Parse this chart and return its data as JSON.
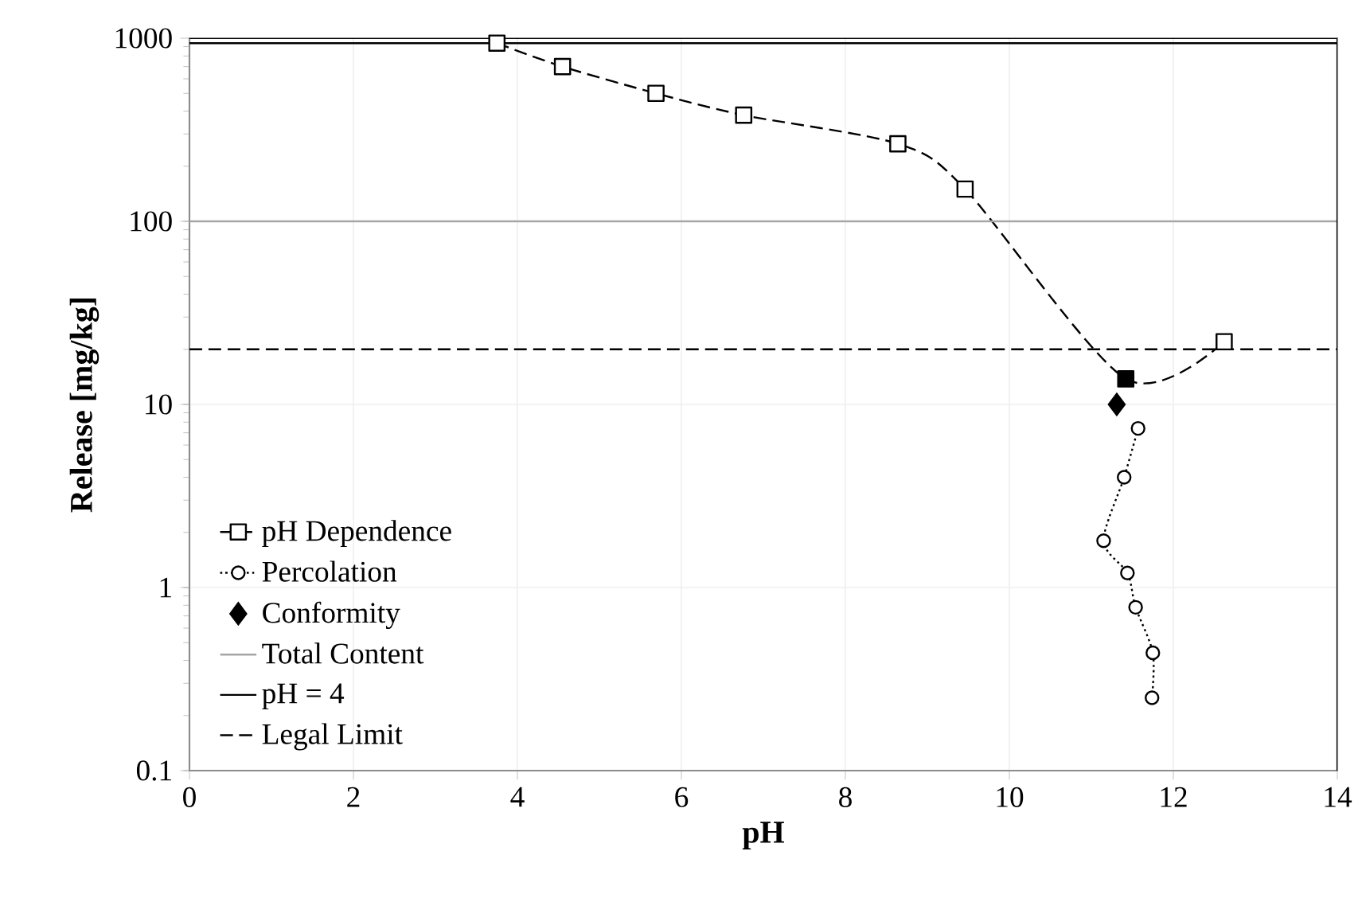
{
  "chart_data": {
    "type": "line",
    "xlabel": "pH",
    "ylabel": "Release [mg/kg]",
    "xlim": [
      0,
      14
    ],
    "xticks": [
      0,
      2,
      4,
      6,
      8,
      10,
      12,
      14
    ],
    "ylim": [
      0.1,
      1000
    ],
    "yticks": [
      0.1,
      1,
      10,
      100,
      1000
    ],
    "log": true,
    "grid": true,
    "legend": "bottom left",
    "series": [
      {
        "name": "pH Dependence",
        "color": "#000000",
        "marker": "square",
        "line_style": "dashed",
        "x": [
          3.75,
          4.55,
          5.69,
          6.76,
          8.64,
          9.46,
          11.42,
          12.62
        ],
        "values": [
          940,
          700,
          500,
          380,
          265,
          150,
          13.8,
          22
        ],
        "colors": [
          "#ffffff",
          "#ffffff",
          "#ffffff",
          "#ffffff",
          "#ffffff",
          "#ffffff",
          "#000000",
          "#ffffff"
        ]
      },
      {
        "name": "Percolation",
        "color": "#000000",
        "marker": "circle",
        "line_style": "dotted",
        "x": [
          11.57,
          11.4,
          11.15,
          11.44,
          11.54,
          11.75,
          11.74
        ],
        "values": [
          7.4,
          4.0,
          1.8,
          1.2,
          0.78,
          0.44,
          0.25
        ]
      },
      {
        "name": "Conformity",
        "type": "scatter",
        "color": "#000000",
        "marker": "diamond",
        "x": [
          11.31
        ],
        "values": [
          10
        ]
      },
      {
        "name": "Total Content",
        "color": "#a6a6a6",
        "marker": "none",
        "line_style": "solid",
        "x": [
          0,
          14
        ],
        "values": [
          100,
          100
        ]
      },
      {
        "name": "pH = 4",
        "color": "#000000",
        "marker": "none",
        "line_style": "solid",
        "x": [
          0,
          14
        ],
        "values": [
          940,
          940
        ]
      },
      {
        "name": "Legal Limit",
        "color": "#000000",
        "marker": "none",
        "line_style": "dashed",
        "x": [
          0,
          14
        ],
        "values": [
          20,
          20
        ]
      }
    ]
  }
}
